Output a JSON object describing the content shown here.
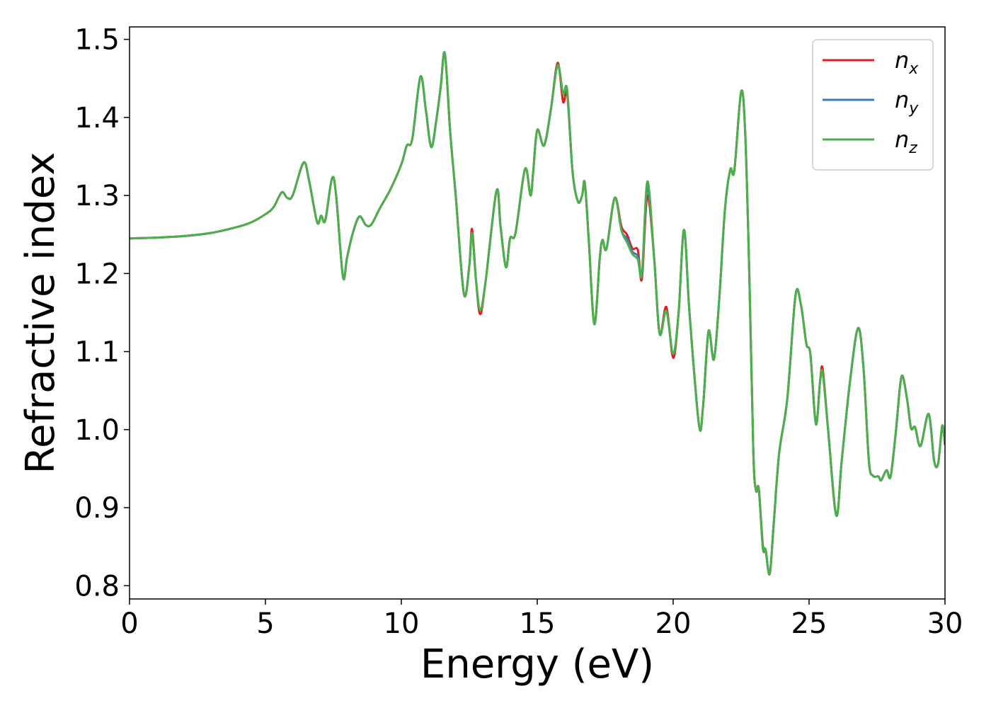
{
  "chart_data": {
    "type": "line",
    "xlabel": "Energy (eV)",
    "ylabel": "Refractive index",
    "xlim": [
      0,
      30
    ],
    "xticks": [
      0,
      5,
      10,
      15,
      20,
      25,
      30
    ],
    "ylim": [
      0.783,
      1.516
    ],
    "yticks": [
      0.8,
      0.9,
      {
        "value": 1,
        "label": "1.0"
      },
      1.1,
      1.2,
      1.3,
      1.4,
      1.5
    ],
    "legend": "upper right",
    "x": [
      0,
      1,
      2,
      3,
      4,
      4.5,
      5,
      5.3,
      5.6,
      5.8,
      6.0,
      6.4,
      6.6,
      6.9,
      7.05,
      7.2,
      7.45,
      7.6,
      7.85,
      8.0,
      8.2,
      8.45,
      8.7,
      8.9,
      9.2,
      9.6,
      10.0,
      10.2,
      10.4,
      10.7,
      10.9,
      11.1,
      11.3,
      11.45,
      11.6,
      11.8,
      12.0,
      12.3,
      12.5,
      12.6,
      12.75,
      12.9,
      13.1,
      13.5,
      13.65,
      13.85,
      14.0,
      14.2,
      14.55,
      14.75,
      14.85,
      15.0,
      15.25,
      15.5,
      15.75,
      15.95,
      16.1,
      16.3,
      16.5,
      16.65,
      16.75,
      16.9,
      17.1,
      17.3,
      17.4,
      17.55,
      17.85,
      18.1,
      18.3,
      18.5,
      18.7,
      18.85,
      19.05,
      19.3,
      19.5,
      19.75,
      20.0,
      20.2,
      20.4,
      20.6,
      20.95,
      21.1,
      21.3,
      21.5,
      21.7,
      21.9,
      22.1,
      22.25,
      22.5,
      22.65,
      22.8,
      22.95,
      23.05,
      23.15,
      23.3,
      23.4,
      23.55,
      23.7,
      23.9,
      24.2,
      24.5,
      24.7,
      24.9,
      25.05,
      25.25,
      25.4,
      25.5,
      25.7,
      26.0,
      26.2,
      26.5,
      26.8,
      27.0,
      27.2,
      27.35,
      27.55,
      27.65,
      27.85,
      28.0,
      28.2,
      28.4,
      28.6,
      28.75,
      28.9,
      29.1,
      29.4,
      29.6,
      29.75,
      29.9,
      30.0
    ],
    "series": [
      {
        "name": "nx",
        "color": "#e41a1c",
        "values": [
          1.245,
          1.246,
          1.248,
          1.252,
          1.26,
          1.266,
          1.276,
          1.285,
          1.304,
          1.297,
          1.3,
          1.342,
          1.32,
          1.266,
          1.274,
          1.268,
          1.322,
          1.3,
          1.196,
          1.22,
          1.25,
          1.273,
          1.262,
          1.263,
          1.283,
          1.308,
          1.34,
          1.364,
          1.372,
          1.452,
          1.41,
          1.362,
          1.4,
          1.44,
          1.482,
          1.38,
          1.3,
          1.174,
          1.21,
          1.257,
          1.19,
          1.148,
          1.19,
          1.306,
          1.26,
          1.208,
          1.245,
          1.252,
          1.334,
          1.3,
          1.33,
          1.384,
          1.364,
          1.41,
          1.47,
          1.42,
          1.43,
          1.33,
          1.292,
          1.3,
          1.316,
          1.24,
          1.135,
          1.22,
          1.243,
          1.232,
          1.297,
          1.26,
          1.25,
          1.232,
          1.23,
          1.193,
          1.3,
          1.22,
          1.123,
          1.157,
          1.092,
          1.15,
          1.256,
          1.15,
          1.006,
          1.03,
          1.126,
          1.09,
          1.17,
          1.28,
          1.333,
          1.332,
          1.433,
          1.38,
          1.2,
          0.97,
          0.922,
          0.924,
          0.852,
          0.846,
          0.815,
          0.88,
          0.97,
          1.04,
          1.172,
          1.16,
          1.11,
          1.096,
          1.007,
          1.06,
          1.078,
          1.0,
          0.89,
          0.96,
          1.06,
          1.13,
          1.08,
          0.96,
          0.941,
          0.94,
          0.935,
          0.948,
          0.94,
          1.0,
          1.068,
          1.04,
          1.002,
          1.003,
          0.979,
          1.02,
          0.96,
          0.957,
          1.005,
          0.98
        ]
      },
      {
        "name": "ny",
        "color": "#377eb8",
        "values": [
          1.245,
          1.246,
          1.248,
          1.252,
          1.26,
          1.266,
          1.276,
          1.285,
          1.304,
          1.297,
          1.3,
          1.342,
          1.32,
          1.266,
          1.274,
          1.268,
          1.322,
          1.3,
          1.196,
          1.22,
          1.25,
          1.273,
          1.262,
          1.263,
          1.283,
          1.308,
          1.34,
          1.364,
          1.372,
          1.452,
          1.41,
          1.362,
          1.4,
          1.44,
          1.482,
          1.38,
          1.3,
          1.174,
          1.21,
          1.252,
          1.19,
          1.153,
          1.19,
          1.306,
          1.26,
          1.208,
          1.245,
          1.252,
          1.334,
          1.3,
          1.33,
          1.384,
          1.364,
          1.41,
          1.467,
          1.43,
          1.435,
          1.33,
          1.292,
          1.3,
          1.316,
          1.24,
          1.135,
          1.22,
          1.243,
          1.232,
          1.297,
          1.255,
          1.245,
          1.228,
          1.222,
          1.198,
          1.31,
          1.22,
          1.123,
          1.152,
          1.097,
          1.15,
          1.256,
          1.15,
          1.006,
          1.03,
          1.126,
          1.09,
          1.17,
          1.28,
          1.333,
          1.332,
          1.433,
          1.38,
          1.2,
          0.97,
          0.922,
          0.924,
          0.848,
          0.846,
          0.815,
          0.88,
          0.97,
          1.04,
          1.172,
          1.16,
          1.11,
          1.096,
          1.007,
          1.06,
          1.073,
          1.0,
          0.89,
          0.96,
          1.06,
          1.13,
          1.08,
          0.96,
          0.941,
          0.94,
          0.935,
          0.948,
          0.94,
          1.0,
          1.068,
          1.04,
          1.002,
          1.003,
          0.979,
          1.02,
          0.96,
          0.957,
          1.005,
          0.98
        ]
      },
      {
        "name": "nz",
        "color": "#4daf4a",
        "values": [
          1.245,
          1.246,
          1.248,
          1.252,
          1.26,
          1.266,
          1.276,
          1.285,
          1.304,
          1.297,
          1.3,
          1.342,
          1.32,
          1.266,
          1.274,
          1.268,
          1.322,
          1.3,
          1.196,
          1.22,
          1.25,
          1.273,
          1.262,
          1.263,
          1.283,
          1.308,
          1.34,
          1.364,
          1.372,
          1.452,
          1.41,
          1.362,
          1.4,
          1.44,
          1.482,
          1.38,
          1.3,
          1.174,
          1.21,
          1.252,
          1.19,
          1.153,
          1.19,
          1.306,
          1.26,
          1.208,
          1.245,
          1.252,
          1.334,
          1.3,
          1.33,
          1.384,
          1.364,
          1.41,
          1.467,
          1.43,
          1.435,
          1.33,
          1.292,
          1.3,
          1.316,
          1.24,
          1.135,
          1.22,
          1.243,
          1.232,
          1.297,
          1.255,
          1.24,
          1.225,
          1.218,
          1.2,
          1.318,
          1.22,
          1.123,
          1.152,
          1.097,
          1.15,
          1.256,
          1.15,
          1.006,
          1.03,
          1.126,
          1.09,
          1.17,
          1.28,
          1.333,
          1.332,
          1.433,
          1.38,
          1.2,
          0.97,
          0.922,
          0.924,
          0.848,
          0.846,
          0.815,
          0.88,
          0.97,
          1.04,
          1.172,
          1.16,
          1.11,
          1.096,
          1.007,
          1.06,
          1.073,
          1.0,
          0.89,
          0.96,
          1.06,
          1.13,
          1.08,
          0.96,
          0.941,
          0.94,
          0.935,
          0.948,
          0.94,
          1.0,
          1.068,
          1.04,
          1.002,
          1.003,
          0.979,
          1.02,
          0.96,
          0.957,
          1.005,
          0.98
        ]
      }
    ]
  }
}
